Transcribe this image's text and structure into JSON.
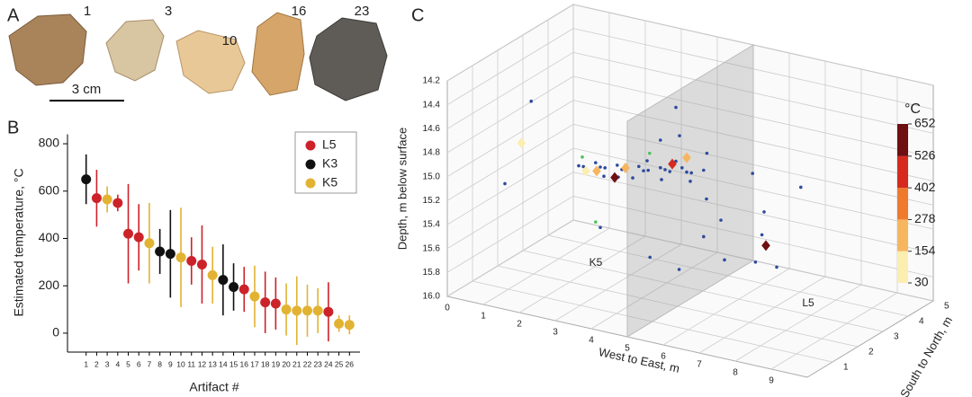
{
  "panel_a": {
    "label": "A",
    "numbers": [
      "1",
      "3",
      "10",
      "16",
      "23"
    ],
    "scale_bar": "3 cm"
  },
  "chart_data": [
    {
      "type": "scatter",
      "panel_label": "B",
      "xlabel": "Artifact #",
      "ylabel": "Estimated temperature, °C",
      "xlim": [
        0,
        27
      ],
      "ylim": [
        -80,
        840
      ],
      "xticks": [
        1,
        2,
        3,
        4,
        5,
        6,
        7,
        8,
        9,
        10,
        11,
        12,
        13,
        14,
        15,
        16,
        17,
        18,
        19,
        20,
        21,
        22,
        23,
        24,
        25,
        26
      ],
      "yticks": [
        0,
        200,
        400,
        600,
        800
      ],
      "legend": "upper right",
      "series": [
        {
          "name": "L5",
          "color": "#cc2229",
          "x": [
            2,
            4,
            5,
            6,
            11,
            12,
            16,
            18,
            19,
            24
          ],
          "values": [
            570,
            550,
            420,
            405,
            305,
            290,
            185,
            130,
            125,
            90
          ],
          "errors": [
            120,
            35,
            210,
            140,
            100,
            165,
            95,
            130,
            110,
            125
          ]
        },
        {
          "name": "K3",
          "color": "#111111",
          "x": [
            1,
            8,
            9,
            14,
            15
          ],
          "values": [
            650,
            345,
            335,
            225,
            195
          ],
          "errors": [
            105,
            95,
            185,
            150,
            100
          ]
        },
        {
          "name": "K5",
          "color": "#e2b232",
          "x": [
            3,
            7,
            10,
            13,
            17,
            20,
            21,
            22,
            23,
            25,
            26
          ],
          "values": [
            565,
            380,
            320,
            245,
            155,
            100,
            95,
            95,
            95,
            40,
            35
          ],
          "errors": [
            55,
            170,
            210,
            120,
            130,
            110,
            145,
            110,
            95,
            35,
            40
          ]
        }
      ]
    },
    {
      "type": "scatter3d",
      "panel_label": "C",
      "xlabel": "West to East, m",
      "ylabel": "South to North, m",
      "zlabel": "Depth, m below surface",
      "xlim": [
        0,
        10
      ],
      "ylim": [
        0,
        5
      ],
      "zlim": [
        14.2,
        16.0
      ],
      "xticks": [
        0,
        1,
        2,
        3,
        4,
        5,
        6,
        7,
        8,
        9
      ],
      "yticks": [
        1,
        2,
        3,
        4,
        5
      ],
      "zticks": [
        14.2,
        14.4,
        14.6,
        14.8,
        {
          "value": 15,
          "label": "15.0"
        },
        15.2,
        15.4,
        15.6,
        15.8,
        {
          "value": 16,
          "label": "16.0"
        }
      ],
      "boundary_x": 5,
      "annotations": [
        "K5",
        "L5"
      ],
      "series": [
        {
          "color": "#2e4a9e",
          "x": [
            1.9,
            2.1,
            2.3,
            2.5,
            2.7,
            2.9,
            3.1,
            3.3,
            3.5,
            3.7,
            3.9,
            4.1,
            4.3,
            4.5,
            4.7,
            4.9,
            5.1,
            5.3,
            2.6,
            3.0,
            3.4,
            3.8,
            4.2,
            4.6,
            5.0,
            0.3,
            4.6,
            4.7,
            4.1,
            5.6,
            6.8,
            8.0,
            5.8,
            6.2,
            6.0,
            7.3,
            7.0,
            5.6,
            7.4,
            7.2,
            8.1,
            5.0,
            3.2,
            0.2
          ],
          "y": [
            2.5,
            2.4,
            2.6,
            2.5,
            2.4,
            2.6,
            2.5,
            2.4,
            2.6,
            2.5,
            2.4,
            2.6,
            2.5,
            2.4,
            2.6,
            2.5,
            2.4,
            2.6,
            2.5,
            2.5,
            2.5,
            2.5,
            2.5,
            2.5,
            2.5,
            2.9,
            2.5,
            2.5,
            2.6,
            2.3,
            2.4,
            2.6,
            2.0,
            2.0,
            1.6,
            1.8,
            1.0,
            1.2,
            2.0,
            2.2,
            1.5,
            0.9,
            1.5,
            2.0
          ],
          "z": [
            15.1,
            15.08,
            15.06,
            15.07,
            15.05,
            15.04,
            15.05,
            15.02,
            15.01,
            15.02,
            14.99,
            14.98,
            14.97,
            14.96,
            14.94,
            14.95,
            14.93,
            14.92,
            15.14,
            15.12,
            15.1,
            14.93,
            15.06,
            14.88,
            15.02,
            14.72,
            14.43,
            14.66,
            14.75,
            14.72,
            14.82,
            14.88,
            15.05,
            15.2,
            15.3,
            15.45,
            15.35,
            15.55,
            15.05,
            15.28,
            15.4,
            15.45,
            15.4,
            15.3
          ]
        },
        {
          "color": "#4cc25a",
          "x": [
            2.0,
            3.0,
            3.8,
            7.6
          ],
          "y": [
            2.5,
            1.6,
            2.6,
            1.8
          ],
          "z": [
            15.02,
            15.38,
            14.88,
            15.3
          ]
        }
      ],
      "artifacts": {
        "x": [
          0.1,
          2.1,
          2.4,
          2.9,
          3.2,
          4.5,
          4.9,
          7.8
        ],
        "y": [
          2.8,
          2.5,
          2.5,
          2.5,
          2.5,
          2.5,
          2.5,
          1.5
        ],
        "z": [
          15.07,
          15.13,
          15.11,
          15.13,
          15.03,
          14.91,
          14.83,
          15.24
        ],
        "values": [
          95,
          95,
          245,
          565,
          245,
          420,
          245,
          600
        ]
      },
      "colorbar": {
        "title": "°C",
        "ticks": [
          30,
          154,
          278,
          402,
          526,
          652
        ],
        "colors": [
          "#fbeeb0",
          "#f6b660",
          "#ef7a2e",
          "#d62a1f",
          "#6e0f12"
        ]
      }
    }
  ]
}
